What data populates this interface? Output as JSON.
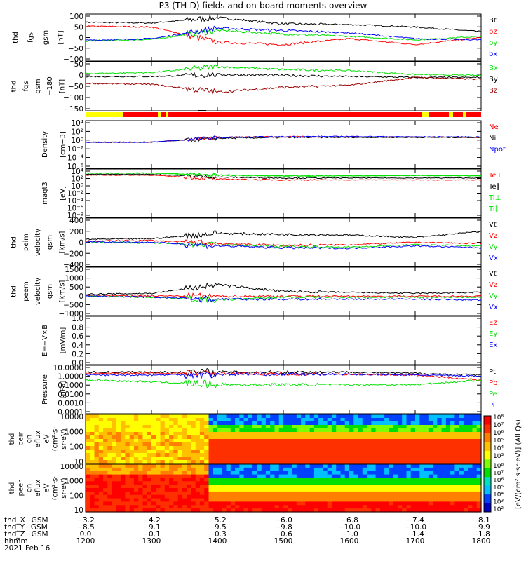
{
  "title": "P3 (TH-D) fields and on-board moments overview",
  "colors": {
    "black": "#000000",
    "red": "#ff0000",
    "green": "#00e000",
    "blue": "#0000ff",
    "darkred": "#9a0000"
  },
  "panels": [
    {
      "id": "fgs-gsm",
      "ylabel": [
        "thd",
        "fgs",
        "gsm",
        "[nT]"
      ],
      "yticks": [
        "100",
        "50",
        "0",
        "−50",
        "−100"
      ],
      "legend": [
        {
          "text": "Bt",
          "color": "#000000"
        },
        {
          "text": "bz",
          "color": "#ff0000"
        },
        {
          "text": "by",
          "color": "#00e000"
        },
        {
          "text": "bx",
          "color": "#0000ff"
        }
      ]
    },
    {
      "id": "fgs-gsm-180",
      "ylabel": [
        "thd",
        "fgs",
        "gsm",
        "−180",
        "[nT]"
      ],
      "yticks": [
        "50",
        "0",
        "−50",
        "−100",
        "−150"
      ],
      "legend": [
        {
          "text": "Bx",
          "color": "#00e000"
        },
        {
          "text": "By",
          "color": "#000000"
        },
        {
          "text": "Bz",
          "color": "#9a0000"
        }
      ]
    },
    {
      "id": "density",
      "ylabel": [
        "Density",
        "[cm−3]"
      ],
      "yticks": [
        "10⁴",
        "10²",
        "10⁰",
        "10⁻²",
        "10⁻⁴",
        "10⁻⁶"
      ],
      "legend": [
        {
          "text": "Ne",
          "color": "#ff0000"
        },
        {
          "text": "Ni",
          "color": "#000000"
        },
        {
          "text": "Npot",
          "color": "#0000ff"
        }
      ]
    },
    {
      "id": "temperature",
      "ylabel": [
        "magt3",
        "[eV]"
      ],
      "yticks": [
        "10⁴",
        "10²",
        "10⁰",
        "10⁻²",
        "10⁻⁴",
        "10⁻⁶",
        "10⁻⁸"
      ],
      "legend": [
        {
          "text": "Te⊥",
          "color": "#ff0000"
        },
        {
          "text": "Te∥",
          "color": "#000000"
        },
        {
          "text": "Ti⊥",
          "color": "#00e000"
        },
        {
          "text": "Ti∥",
          "color": "#00e000"
        }
      ]
    },
    {
      "id": "peim-velocity",
      "ylabel": [
        "thd",
        "peim",
        "velocity",
        "gsm",
        "[km/s]"
      ],
      "yticks": [
        "400",
        "200",
        "0",
        "−200",
        "−400"
      ],
      "legend": [
        {
          "text": "Vt",
          "color": "#000000"
        },
        {
          "text": "Vz",
          "color": "#ff0000"
        },
        {
          "text": "Vy",
          "color": "#00e000"
        },
        {
          "text": "Vx",
          "color": "#0000ff"
        }
      ]
    },
    {
      "id": "peem-velocity",
      "ylabel": [
        "thd",
        "peem",
        "velocity",
        "gsm",
        "[km/s]"
      ],
      "yticks": [
        "1500",
        "1000",
        "500",
        "0",
        "−500",
        "−1000"
      ],
      "legend": [
        {
          "text": "Vt",
          "color": "#000000"
        },
        {
          "text": "Vz",
          "color": "#ff0000"
        },
        {
          "text": "Vy",
          "color": "#00e000"
        },
        {
          "text": "Vx",
          "color": "#0000ff"
        }
      ]
    },
    {
      "id": "efield",
      "ylabel": [
        "E=−V×B",
        "[mV/m]"
      ],
      "yticks": [
        "1.0",
        "0.8",
        "0.6",
        "0.4",
        "0.2",
        "0.0"
      ],
      "legend": [
        {
          "text": "Ez",
          "color": "#ff0000"
        },
        {
          "text": "Ey",
          "color": "#00e000"
        },
        {
          "text": "Ex",
          "color": "#0000ff"
        }
      ]
    },
    {
      "id": "pressure",
      "ylabel": [
        "Pressure",
        "[nPa]"
      ],
      "yticks": [
        "10.0000",
        "1.0000",
        "0.1000",
        "0.0100",
        "0.0010",
        "0.0001"
      ],
      "legend": [
        {
          "text": "Pt",
          "color": "#000000"
        },
        {
          "text": "Pb",
          "color": "#ff0000"
        },
        {
          "text": "Pe",
          "color": "#00e000"
        },
        {
          "text": "Pi",
          "color": "#0000ff"
        }
      ]
    },
    {
      "id": "peir-eflux",
      "ylabel": [
        "thd",
        "peir",
        "en",
        "eflux",
        "eV",
        "(cm²·s·",
        "sr·eV)"
      ],
      "yticks": [
        "10000",
        "1000",
        "100",
        "10"
      ],
      "legend": []
    },
    {
      "id": "peer-eflux",
      "ylabel": [
        "thd",
        "peer",
        "en",
        "eflux",
        "eV",
        "(cm²·s·",
        "sr·eV)"
      ],
      "yticks": [
        "10000",
        "1000",
        "100",
        "10"
      ],
      "legend": []
    }
  ],
  "colorbar": {
    "label": "[eV/(cm²·s·sr·eV)] (All Qs)",
    "ticks_top": [
      "10⁸",
      "10⁷",
      "10⁶",
      "10⁵",
      "10⁴",
      "10³"
    ],
    "ticks_bottom": [
      "10⁸",
      "10⁷",
      "10⁶",
      "10⁵",
      "10⁴",
      "10³",
      "10²"
    ]
  },
  "time_axis": {
    "rows": [
      {
        "label": "thd_X−GSM",
        "values": [
          "−3.2",
          "−4.2",
          "−5.2",
          "−6.0",
          "−6.8",
          "−7.4",
          "−8.1"
        ]
      },
      {
        "label": "thd_Y−GSM",
        "values": [
          "−8.5",
          "−9.1",
          "−9.5",
          "−9.8",
          "−10.0",
          "−10.0",
          "−9.9"
        ]
      },
      {
        "label": "thd_Z−GSM",
        "values": [
          "0.0",
          "−0.1",
          "−0.3",
          "−0.6",
          "−1.0",
          "−1.4",
          "−1.8"
        ]
      },
      {
        "label": "hhmm",
        "values": [
          "1200",
          "1300",
          "1400",
          "1500",
          "1600",
          "1700",
          "1800"
        ]
      }
    ],
    "date": "2021 Feb 16"
  },
  "chart_data": {
    "type": "line",
    "title": "P3 (TH-D) fields and on-board moments overview",
    "x_unit": "hhmm",
    "x": [
      "1200",
      "1300",
      "1400",
      "1500",
      "1600",
      "1700",
      "1800"
    ],
    "panels": [
      {
        "name": "fgs-gsm",
        "ylim": [
          -100,
          100
        ],
        "series": [
          {
            "name": "Bt",
            "color": "#000000",
            "values": [
              65,
              62,
              85,
              58,
              55,
              45,
              25
            ]
          },
          {
            "name": "bz",
            "color": "#ff0000",
            "values": [
              48,
              45,
              -20,
              -30,
              -5,
              -30,
              0
            ]
          },
          {
            "name": "by",
            "color": "#00e000",
            "values": [
              -15,
              -8,
              30,
              15,
              5,
              -10,
              5
            ]
          },
          {
            "name": "bx",
            "color": "#0000ff",
            "values": [
              -12,
              -5,
              40,
              30,
              20,
              -5,
              -10
            ]
          }
        ]
      },
      {
        "name": "fgs-gsm-180",
        "ylim": [
          -180,
          70
        ],
        "series": [
          {
            "name": "Bx",
            "color": "#00e000",
            "values": [
              10,
              15,
              45,
              30,
              25,
              5,
              0
            ]
          },
          {
            "name": "By",
            "color": "#000000",
            "values": [
              -5,
              -5,
              5,
              0,
              -5,
              -10,
              -10
            ]
          },
          {
            "name": "Bz",
            "color": "#9a0000",
            "values": [
              -40,
              -45,
              -85,
              -60,
              -50,
              -10,
              -20
            ]
          }
        ]
      },
      {
        "name": "density",
        "ylim": [
          "1e-6",
          "1e4"
        ],
        "log": true,
        "series": [
          {
            "name": "Ne",
            "color": "#ff0000",
            "values": [
              "0.3",
              "0.3",
              "3",
              "4",
              "4",
              "4",
              "3"
            ]
          },
          {
            "name": "Ni",
            "color": "#000000",
            "values": [
              "0.3",
              "0.3",
              "2",
              "3",
              "3",
              "3",
              "3"
            ]
          },
          {
            "name": "Npot",
            "color": "#0000ff",
            "values": [
              "0.3",
              "0.3",
              "3",
              "4",
              "5",
              "4",
              "4"
            ]
          }
        ]
      },
      {
        "name": "temperature",
        "ylim": [
          "1e-8",
          "1e4"
        ],
        "log": true,
        "series": [
          {
            "name": "Te⊥",
            "color": "#ff0000",
            "values": [
              "300",
              "300",
              "30",
              "20",
              "20",
              "20",
              "20"
            ]
          },
          {
            "name": "Te∥",
            "color": "#000000",
            "values": [
              "500",
              "500",
              "100",
              "60",
              "60",
              "60",
              "60"
            ]
          },
          {
            "name": "Ti⊥",
            "color": "#00e000",
            "values": [
              "1000",
              "1000",
              "300",
              "200",
              "200",
              "250",
              "200"
            ]
          },
          {
            "name": "Ti∥",
            "color": "#00e000",
            "values": [
              "1000",
              "1000",
              "300",
              "200",
              "200",
              "250",
              "200"
            ]
          }
        ]
      },
      {
        "name": "peim-velocity",
        "ylim": [
          -400,
          400
        ],
        "series": [
          {
            "name": "Vt",
            "color": "#000000",
            "values": [
              50,
              60,
              150,
              130,
              120,
              80,
              180
            ]
          },
          {
            "name": "Vz",
            "color": "#ff0000",
            "values": [
              20,
              30,
              -20,
              -50,
              -40,
              0,
              -20
            ]
          },
          {
            "name": "Vy",
            "color": "#00e000",
            "values": [
              0,
              -10,
              -40,
              -70,
              -80,
              -40,
              -60
            ]
          },
          {
            "name": "Vx",
            "color": "#0000ff",
            "values": [
              10,
              0,
              -60,
              -90,
              -100,
              -60,
              -90
            ]
          }
        ]
      },
      {
        "name": "peem-velocity",
        "ylim": [
          -1000,
          1500
        ],
        "series": [
          {
            "name": "Vt",
            "color": "#000000",
            "values": [
              100,
              150,
              600,
              250,
              200,
              150,
              200
            ]
          },
          {
            "name": "Vz",
            "color": "#ff0000",
            "values": [
              20,
              20,
              0,
              0,
              0,
              0,
              0
            ]
          },
          {
            "name": "Vy",
            "color": "#00e000",
            "values": [
              0,
              -50,
              -200,
              -50,
              -50,
              -50,
              -50
            ]
          },
          {
            "name": "Vx",
            "color": "#0000ff",
            "values": [
              0,
              -50,
              -150,
              -150,
              -150,
              -150,
              -200
            ]
          }
        ]
      },
      {
        "name": "pressure",
        "ylim": [
          "1e-4",
          "10"
        ],
        "log": true,
        "series": [
          {
            "name": "Pt",
            "color": "#000000",
            "values": [
              "2",
              "2",
              "2",
              "2",
              "2",
              "1.5",
              "1.0"
            ]
          },
          {
            "name": "Pb",
            "color": "#ff0000",
            "values": [
              "1.5",
              "1.5",
              "1.5",
              "1.2",
              "1.2",
              "1.0",
              "0.3"
            ]
          },
          {
            "name": "Pe",
            "color": "#00e000",
            "values": [
              "0.3",
              "0.2",
              "0.1",
              "0.1",
              "0.1",
              "0.1",
              "0.3"
            ]
          },
          {
            "name": "Pi",
            "color": "#0000ff",
            "values": [
              "1.0",
              "1.0",
              "1.2",
              "1.2",
              "1.2",
              "1.0",
              "0.8"
            ]
          }
        ]
      }
    ]
  }
}
